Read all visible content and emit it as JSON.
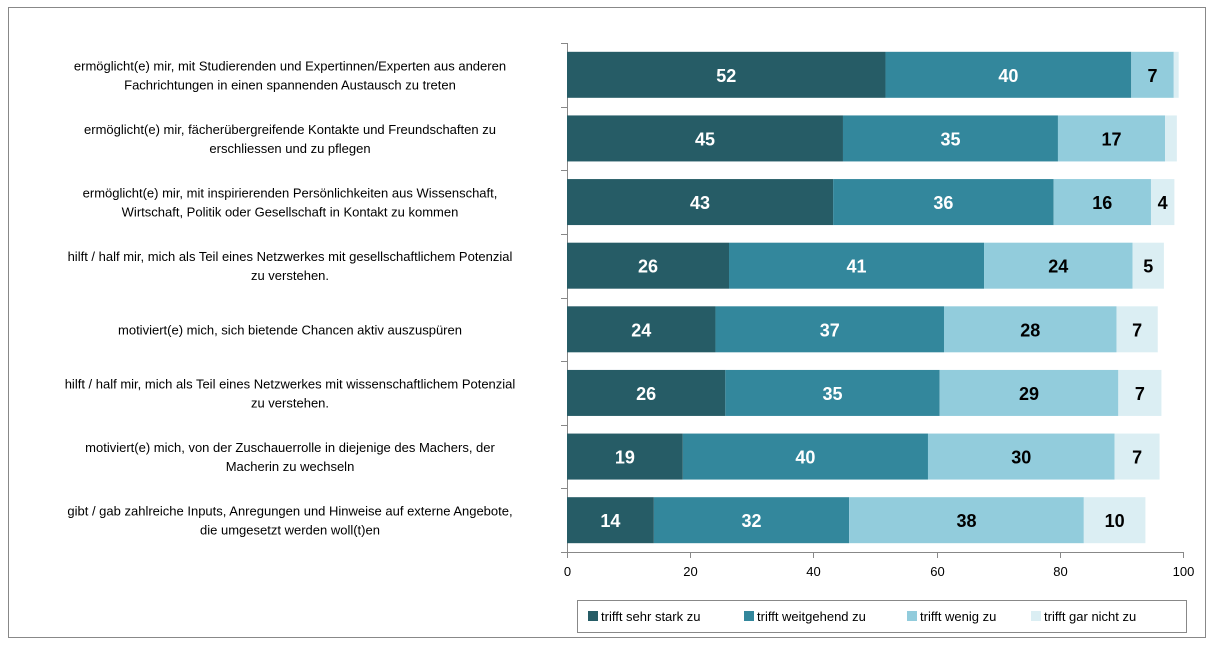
{
  "chart_data": {
    "type": "bar",
    "orientation": "horizontal",
    "stacked": true,
    "categories": [
      [
        "ermöglicht(e) mir, mit Studierenden und Expertinnen/Experten aus anderen",
        "Fachrichtungen in einen spannenden Austausch zu treten"
      ],
      [
        "ermöglicht(e) mir, fächerübergreifende Kontakte und Freundschaften zu",
        "erschliessen und zu pflegen"
      ],
      [
        "ermöglicht(e) mir, mit inspirierenden Persönlichkeiten aus Wissenschaft,",
        "Wirtschaft, Politik oder Gesellschaft in Kontakt zu kommen"
      ],
      [
        "hilft / half mir, mich als Teil eines Netzwerkes mit gesellschaftlichem Potenzial",
        "zu verstehen."
      ],
      [
        "motiviert(e) mich, sich bietende Chancen aktiv auszuspüren"
      ],
      [
        "hilft / half mir, mich als Teil eines Netzwerkes mit wissenschaftlichem Potenzial",
        "zu verstehen."
      ],
      [
        "motiviert(e) mich, von der Zuschauerrolle in diejenige des Machers, der",
        "Macherin zu wechseln"
      ],
      [
        "gibt / gab zahlreiche Inputs, Anregungen und Hinweise auf externe Angebote,",
        "die umgesetzt werden woll(t)en"
      ]
    ],
    "series": [
      {
        "name": "trifft sehr stark zu",
        "color": "#265c66",
        "label_color": "#ffffff",
        "values": [
          51.7,
          44.8,
          43.2,
          26.3,
          24.1,
          25.7,
          18.8,
          14.1
        ],
        "labels": [
          "52",
          "45",
          "43",
          "26",
          "24",
          "26",
          "19",
          "14"
        ]
      },
      {
        "name": "trifft weitgehend zu",
        "color": "#33879c",
        "label_color": "#ffffff",
        "values": [
          39.9,
          34.9,
          35.8,
          41.4,
          37.1,
          34.8,
          39.8,
          31.7
        ],
        "labels": [
          "40",
          "35",
          "36",
          "41",
          "37",
          "35",
          "40",
          "32"
        ]
      },
      {
        "name": "trifft wenig zu",
        "color": "#92ccdc",
        "label_color": "#000000",
        "values": [
          6.9,
          17.4,
          15.8,
          24.1,
          28.0,
          29.0,
          30.3,
          38.1
        ],
        "labels": [
          "7",
          "17",
          "16",
          "24",
          "28",
          "29",
          "30",
          "38"
        ]
      },
      {
        "name": "trifft gar nicht zu",
        "color": "#dbeef3",
        "label_color": "#000000",
        "values": [
          0.8,
          1.9,
          3.8,
          5.1,
          6.7,
          7.0,
          7.3,
          10.0
        ],
        "labels": [
          "",
          "",
          "4",
          "5",
          "7",
          "7",
          "7",
          "10"
        ]
      }
    ],
    "xlim": [
      0,
      100
    ],
    "xticks": [
      "0",
      "20",
      "40",
      "60",
      "80",
      "100"
    ],
    "grid": false,
    "legend": "bottom"
  }
}
